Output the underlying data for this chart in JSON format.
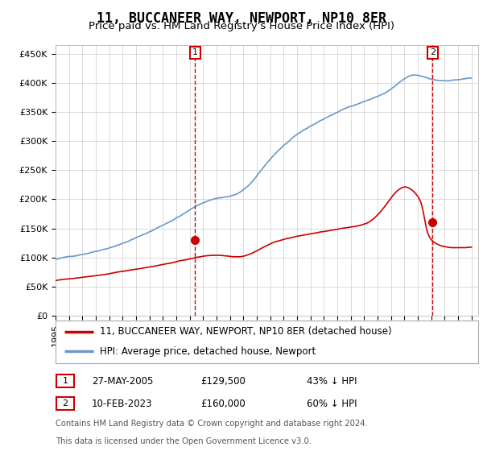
{
  "title": "11, BUCCANEER WAY, NEWPORT, NP10 8ER",
  "subtitle": "Price paid vs. HM Land Registry's House Price Index (HPI)",
  "ylabel_ticks": [
    "£0",
    "£50K",
    "£100K",
    "£150K",
    "£200K",
    "£250K",
    "£300K",
    "£350K",
    "£400K",
    "£450K"
  ],
  "ytick_values": [
    0,
    50000,
    100000,
    150000,
    200000,
    250000,
    300000,
    350000,
    400000,
    450000
  ],
  "ylim": [
    0,
    465000
  ],
  "xlim_start": 1995.0,
  "xlim_end": 2026.5,
  "sale1_date_x": 2005.4,
  "sale1_price": 129500,
  "sale1_label": "27-MAY-2005",
  "sale1_pct": "43% ↓ HPI",
  "sale2_date_x": 2023.1,
  "sale2_price": 160000,
  "sale2_label": "10-FEB-2023",
  "sale2_pct": "60% ↓ HPI",
  "red_line_color": "#cc0000",
  "blue_line_color": "#6699cc",
  "marker_color": "#cc0000",
  "vline_color": "#cc0000",
  "grid_color": "#cccccc",
  "bg_color": "#ffffff",
  "legend_line1": "11, BUCCANEER WAY, NEWPORT, NP10 8ER (detached house)",
  "legend_line2": "HPI: Average price, detached house, Newport",
  "footnote1": "Contains HM Land Registry data © Crown copyright and database right 2024.",
  "footnote2": "This data is licensed under the Open Government Licence v3.0.",
  "title_fontsize": 12,
  "subtitle_fontsize": 9.5,
  "tick_fontsize": 8,
  "legend_fontsize": 8.5,
  "footnote_fontsize": 7.2
}
